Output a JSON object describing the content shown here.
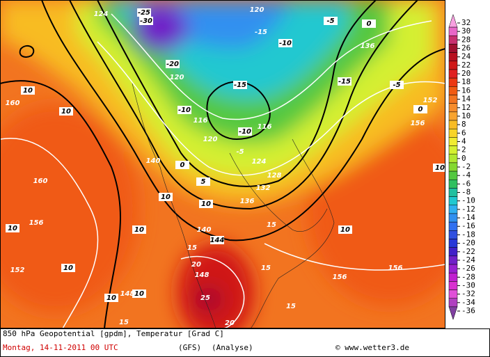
{
  "map": {
    "labels": [
      "124",
      "-25",
      "-30",
      "120",
      "-15",
      "-10",
      "-5",
      "0",
      "136",
      "-20",
      "120",
      "-15",
      "-10",
      "116",
      "-5",
      "124",
      "128",
      "132",
      "136",
      "15",
      "0",
      "5",
      "140",
      "-10",
      "116",
      "120",
      "10",
      "10",
      "160",
      "160",
      "156",
      "152",
      "10",
      "10",
      "10",
      "148",
      "10",
      "15",
      "10",
      "10",
      "10",
      "140",
      "144",
      "15",
      "20",
      "148",
      "25",
      "20",
      "15",
      "15",
      "156",
      "156",
      "10",
      "156",
      "152",
      "10",
      "0",
      "-5",
      "-15"
    ],
    "colorbar": {
      "labels": [
        32,
        30,
        28,
        26,
        24,
        22,
        20,
        18,
        16,
        14,
        12,
        10,
        8,
        6,
        4,
        2,
        0,
        -2,
        -4,
        -6,
        -8,
        -10,
        -12,
        -14,
        -16,
        -18,
        -20,
        -22,
        -24,
        -26,
        -28,
        -30,
        -32,
        -34,
        -36
      ],
      "colors": [
        "#f7a0e0",
        "#e868c8",
        "#c83070",
        "#a01030",
        "#b81020",
        "#d01818",
        "#e02020",
        "#ec3812",
        "#f05a12",
        "#f27420",
        "#f68c2c",
        "#f8a430",
        "#f8bc24",
        "#f8d428",
        "#f0ec30",
        "#d4f030",
        "#b0e830",
        "#84d830",
        "#54c840",
        "#30c060",
        "#20c0a0",
        "#20c8d0",
        "#30b0f0",
        "#3090f0",
        "#3070f0",
        "#3050e0",
        "#2838d8",
        "#4020c8",
        "#7020c8",
        "#9820d0",
        "#c020d0",
        "#d830d0",
        "#e050d8",
        "#b040c0",
        "#8040a0"
      ]
    }
  },
  "footer": {
    "title": "850 hPa Geopotential [gpdm], Temperatur [Grad C]",
    "date": "Montag, 14-11-2011   00 UTC",
    "model": "(GFS)",
    "run": "(Analyse)",
    "credit": "© www.wetter3.de"
  }
}
